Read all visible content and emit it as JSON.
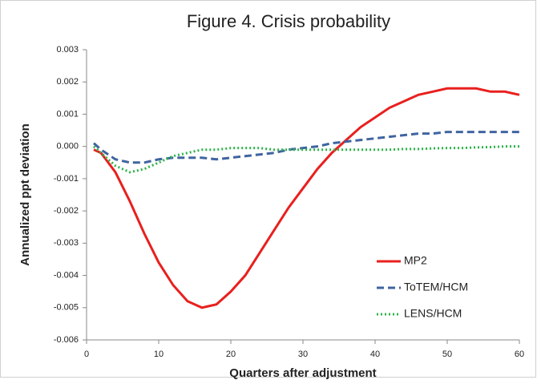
{
  "chart_data": {
    "type": "line",
    "title": "Figure 4.  Crisis probability",
    "x_label": "Quarters after adjustment",
    "y_label": "Annualized ppt deviation",
    "x": [
      1,
      2,
      4,
      6,
      8,
      10,
      12,
      14,
      16,
      18,
      20,
      22,
      24,
      26,
      28,
      30,
      32,
      34,
      36,
      38,
      40,
      42,
      44,
      46,
      48,
      50,
      52,
      54,
      56,
      58,
      60
    ],
    "series": [
      {
        "name": "MP2",
        "color": "#e8201e",
        "style": "solid",
        "values": [
          -0.0001,
          -0.0002,
          -0.0008,
          -0.0017,
          -0.0027,
          -0.0036,
          -0.0043,
          -0.0048,
          -0.005,
          -0.0049,
          -0.0045,
          -0.004,
          -0.0033,
          -0.0026,
          -0.0019,
          -0.0013,
          -0.0007,
          -0.0002,
          0.0002,
          0.0006,
          0.0009,
          0.0012,
          0.0014,
          0.0016,
          0.0017,
          0.0018,
          0.0018,
          0.0018,
          0.0017,
          0.0017,
          0.0016
        ]
      },
      {
        "name": "ToTEM/HCM",
        "color": "#3f64a0",
        "style": "dashed",
        "values": [
          0.0001,
          -0.0001,
          -0.0004,
          -0.0005,
          -0.0005,
          -0.0004,
          -0.00035,
          -0.00035,
          -0.00035,
          -0.0004,
          -0.00035,
          -0.0003,
          -0.00025,
          -0.0002,
          -0.0001,
          -5e-05,
          0,
          0.0001,
          0.00015,
          0.0002,
          0.00025,
          0.0003,
          0.00035,
          0.0004,
          0.0004,
          0.00045,
          0.00045,
          0.00045,
          0.00045,
          0.00045,
          0.00045
        ]
      },
      {
        "name": "LENS/HCM",
        "color": "#2db34a",
        "style": "dotted",
        "values": [
          0,
          -0.0002,
          -0.0006,
          -0.0008,
          -0.0007,
          -0.0005,
          -0.0003,
          -0.0002,
          -0.0001,
          -0.0001,
          -5e-05,
          -5e-05,
          -5e-05,
          -0.0001,
          -0.0001,
          -0.0001,
          -0.0001,
          -0.0001,
          -0.0001,
          -0.0001,
          -0.0001,
          -0.0001,
          -8e-05,
          -8e-05,
          -6e-05,
          -5e-05,
          -5e-05,
          -3e-05,
          -2e-05,
          0,
          0
        ]
      }
    ],
    "xlim": [
      0,
      60
    ],
    "xticks": [
      0,
      10,
      20,
      30,
      40,
      50,
      60
    ],
    "ylim": [
      -0.006,
      0.003
    ],
    "yticks": [
      0.003,
      0.002,
      0.001,
      {
        "value": 0,
        "label": "0.000"
      },
      -0.001,
      -0.002,
      -0.003,
      -0.004,
      -0.005,
      -0.006
    ],
    "legend": "lower right"
  }
}
